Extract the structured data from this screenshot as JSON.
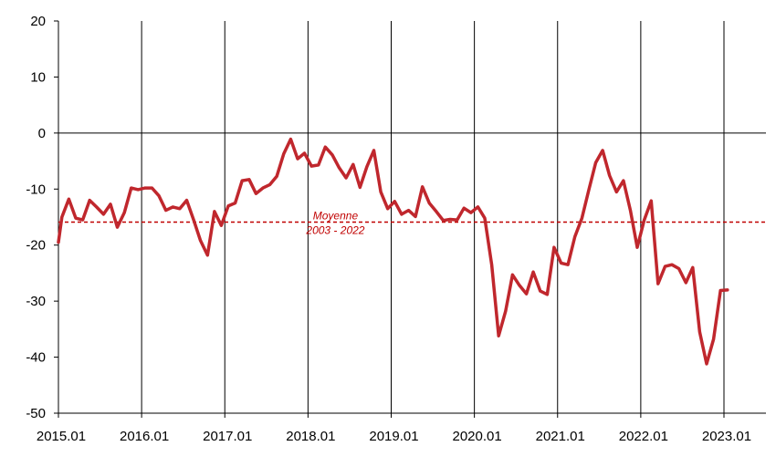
{
  "chart_data": {
    "type": "line",
    "title": "",
    "xlabel": "",
    "ylabel": "",
    "ylim": [
      -50,
      20
    ],
    "xlim": [
      2015.0,
      2023.167
    ],
    "y_ticks": [
      20,
      10,
      0,
      -10,
      -20,
      -30,
      -40,
      -50
    ],
    "x_ticks": [
      {
        "value": 2015,
        "label": "2015.01"
      },
      {
        "value": 2016,
        "label": "2016.01"
      },
      {
        "value": 2017,
        "label": "2017.01"
      },
      {
        "value": 2018,
        "label": "2018.01"
      },
      {
        "value": 2019,
        "label": "2019.01"
      },
      {
        "value": 2020,
        "label": "2020.01"
      },
      {
        "value": 2021,
        "label": "2021.01"
      },
      {
        "value": 2022,
        "label": "2022.01"
      },
      {
        "value": 2023,
        "label": "2023.01"
      }
    ],
    "grid": {
      "vertical": true,
      "horizontal": false
    },
    "series": [
      {
        "color": "#c0272d",
        "x": [
          2015.0,
          2015.042,
          2015.125,
          2015.208,
          2015.292,
          2015.375,
          2015.458,
          2015.542,
          2015.625,
          2015.708,
          2015.792,
          2015.875,
          2015.958,
          2016.042,
          2016.125,
          2016.208,
          2016.292,
          2016.375,
          2016.458,
          2016.542,
          2016.625,
          2016.708,
          2016.792,
          2016.875,
          2016.958,
          2017.042,
          2017.125,
          2017.208,
          2017.292,
          2017.375,
          2017.458,
          2017.542,
          2017.625,
          2017.708,
          2017.792,
          2017.875,
          2017.958,
          2018.042,
          2018.125,
          2018.208,
          2018.292,
          2018.375,
          2018.458,
          2018.542,
          2018.625,
          2018.708,
          2018.792,
          2018.875,
          2018.958,
          2019.042,
          2019.125,
          2019.208,
          2019.292,
          2019.375,
          2019.458,
          2019.542,
          2019.625,
          2019.708,
          2019.792,
          2019.875,
          2019.958,
          2020.042,
          2020.125,
          2020.208,
          2020.292,
          2020.375,
          2020.458,
          2020.542,
          2020.625,
          2020.708,
          2020.792,
          2020.875,
          2020.958,
          2021.042,
          2021.125,
          2021.208,
          2021.292,
          2021.375,
          2021.458,
          2021.542,
          2021.625,
          2021.708,
          2021.792,
          2021.875,
          2021.958,
          2022.042,
          2022.125,
          2022.208,
          2022.292,
          2022.375,
          2022.458,
          2022.542,
          2022.625,
          2022.708,
          2022.792,
          2022.875,
          2022.958,
          2023.042
        ],
        "values": [
          -19.5,
          -15.0,
          -11.8,
          -15.2,
          -15.5,
          -12.0,
          -13.2,
          -14.5,
          -12.7,
          -16.8,
          -14.2,
          -9.8,
          -10.1,
          -9.8,
          -9.8,
          -11.2,
          -13.8,
          -13.2,
          -13.5,
          -12.0,
          -15.5,
          -19.2,
          -21.8,
          -14.0,
          -16.5,
          -13.0,
          -12.5,
          -8.5,
          -8.3,
          -10.8,
          -9.8,
          -9.2,
          -7.7,
          -3.7,
          -1.1,
          -4.6,
          -3.6,
          -5.9,
          -5.7,
          -2.5,
          -3.9,
          -6.2,
          -8.0,
          -5.6,
          -9.7,
          -6.0,
          -3.1,
          -10.5,
          -13.5,
          -12.2,
          -14.5,
          -13.8,
          -14.9,
          -9.6,
          -12.5,
          -14.0,
          -15.6,
          -15.4,
          -15.5,
          -13.4,
          -14.2,
          -13.2,
          -15.2,
          -23.5,
          -36.2,
          -31.8,
          -25.3,
          -27.2,
          -28.7,
          -24.8,
          -28.2,
          -28.8,
          -20.4,
          -23.2,
          -23.5,
          -18.5,
          -15.2,
          -10.2,
          -5.3,
          -3.1,
          -7.6,
          -10.5,
          -8.5,
          -13.8,
          -20.4,
          -15.5,
          -12.1,
          -26.9,
          -23.8,
          -23.5,
          -24.2,
          -26.7,
          -24.0,
          -35.5,
          -41.2,
          -36.8,
          -28.1,
          -28.0
        ]
      }
    ],
    "reference_line": {
      "value": -15.9,
      "style": "dashed",
      "color": "#c00000",
      "label_line1": "Moyenne",
      "label_line2": "2003 - 2022"
    }
  }
}
